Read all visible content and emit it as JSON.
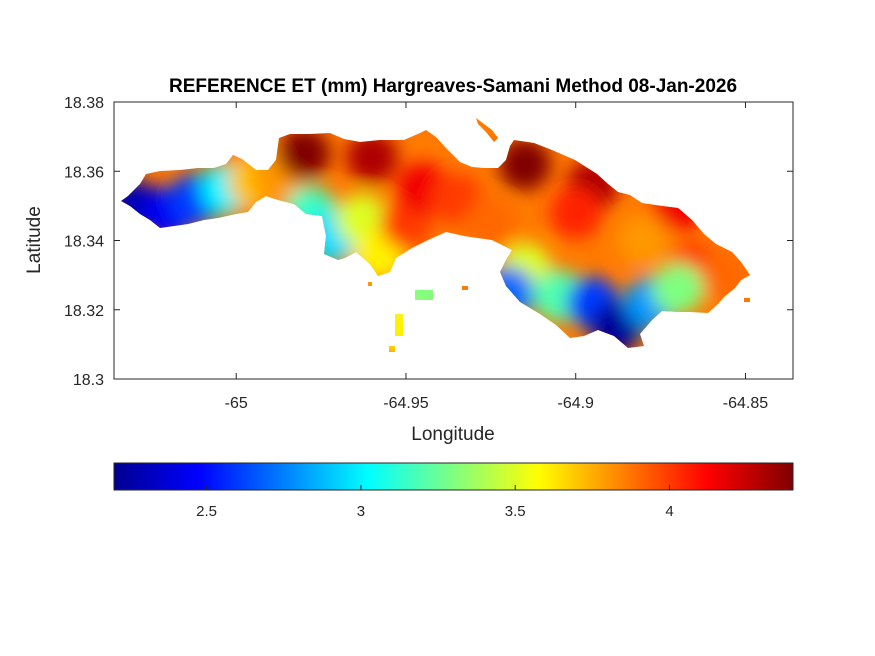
{
  "chart_data": {
    "type": "heatmap",
    "title": "REFERENCE ET (mm) Hargreaves-Samani Method  08-Jan-2026",
    "xlabel": "Longitude",
    "ylabel": "Latitude",
    "xlim": [
      -65.036,
      -64.836
    ],
    "ylim": [
      18.3,
      18.38
    ],
    "xticks": [
      -65,
      -64.95,
      -64.9,
      -64.85
    ],
    "xtick_labels": [
      "-65",
      "-64.95",
      "-64.9",
      "-64.85"
    ],
    "yticks": [
      18.3,
      18.32,
      18.34,
      18.36,
      18.38
    ],
    "ytick_labels": [
      "18.3",
      "18.32",
      "18.34",
      "18.36",
      "18.38"
    ],
    "colormap": "jet",
    "colorbar": {
      "location": "bottom",
      "range": [
        2.2,
        4.4
      ],
      "ticks": [
        2.5,
        3,
        3.5,
        4
      ],
      "tick_labels": [
        "2.5",
        "3",
        "3.5",
        "4"
      ]
    },
    "field_samples": [
      {
        "lon": -65.03,
        "lat": 18.35,
        "value": 2.3
      },
      {
        "lon": -65.02,
        "lat": 18.348,
        "value": 2.45
      },
      {
        "lon": -65.012,
        "lat": 18.352,
        "value": 2.6
      },
      {
        "lon": -65.003,
        "lat": 18.355,
        "value": 3.0
      },
      {
        "lon": -64.995,
        "lat": 18.357,
        "value": 3.7
      },
      {
        "lon": -64.988,
        "lat": 18.358,
        "value": 3.8
      },
      {
        "lon": -64.978,
        "lat": 18.348,
        "value": 3.15
      },
      {
        "lon": -64.972,
        "lat": 18.341,
        "value": 2.95
      },
      {
        "lon": -64.963,
        "lat": 18.346,
        "value": 3.5
      },
      {
        "lon": -64.958,
        "lat": 18.336,
        "value": 3.6
      },
      {
        "lon": -64.95,
        "lat": 18.345,
        "value": 4.0
      },
      {
        "lon": -64.945,
        "lat": 18.355,
        "value": 4.15
      },
      {
        "lon": -64.935,
        "lat": 18.352,
        "value": 4.0
      },
      {
        "lon": -64.925,
        "lat": 18.345,
        "value": 3.9
      },
      {
        "lon": -64.96,
        "lat": 18.364,
        "value": 4.3
      },
      {
        "lon": -64.98,
        "lat": 18.365,
        "value": 4.4
      },
      {
        "lon": -64.915,
        "lat": 18.362,
        "value": 4.4
      },
      {
        "lon": -64.895,
        "lat": 18.356,
        "value": 4.3
      },
      {
        "lon": -64.9,
        "lat": 18.348,
        "value": 4.05
      },
      {
        "lon": -64.87,
        "lat": 18.35,
        "value": 4.15
      },
      {
        "lon": -64.88,
        "lat": 18.34,
        "value": 3.8
      },
      {
        "lon": -64.865,
        "lat": 18.332,
        "value": 4.0
      },
      {
        "lon": -64.856,
        "lat": 18.33,
        "value": 3.9
      },
      {
        "lon": -64.915,
        "lat": 18.332,
        "value": 3.5
      },
      {
        "lon": -64.92,
        "lat": 18.325,
        "value": 2.7
      },
      {
        "lon": -64.905,
        "lat": 18.324,
        "value": 3.2
      },
      {
        "lon": -64.895,
        "lat": 18.322,
        "value": 2.6
      },
      {
        "lon": -64.888,
        "lat": 18.315,
        "value": 2.25
      },
      {
        "lon": -64.878,
        "lat": 18.322,
        "value": 2.8
      },
      {
        "lon": -64.87,
        "lat": 18.326,
        "value": 3.3
      },
      {
        "lon": -64.945,
        "lat": 18.325,
        "value": 3.3
      },
      {
        "lon": -64.953,
        "lat": 18.315,
        "value": 3.6
      }
    ]
  }
}
